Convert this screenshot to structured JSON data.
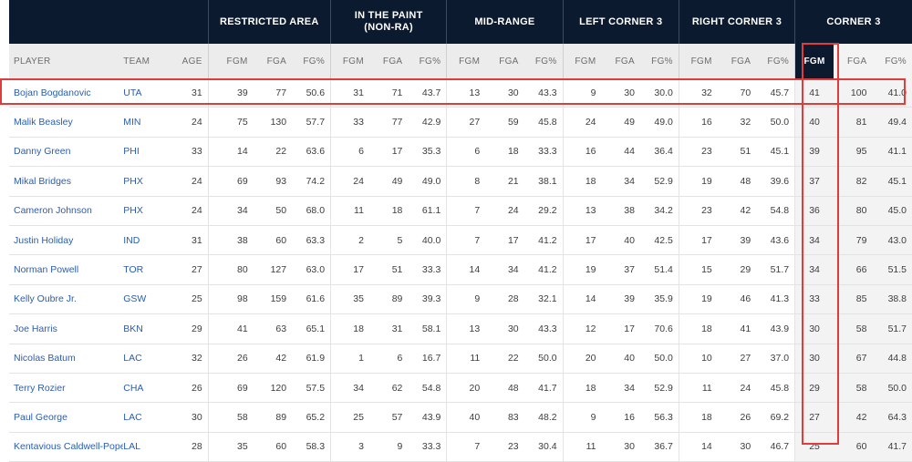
{
  "groups": {
    "restricted_area": "RESTRICTED AREA",
    "in_the_paint_line1": "IN THE PAINT",
    "in_the_paint_line2": "(NON-RA)",
    "mid_range": "MID-RANGE",
    "left_corner_3": "LEFT CORNER 3",
    "right_corner_3": "RIGHT CORNER 3",
    "corner_3": "CORNER 3"
  },
  "columns": {
    "player": "PLAYER",
    "team": "TEAM",
    "age": "AGE",
    "fgm": "FGM",
    "fga": "FGA",
    "fgp": "FG%"
  },
  "highlight": {
    "row_color": "#e03c3c",
    "col_color": "#e03c3c",
    "active_sort_column": "corner_3.FGM"
  },
  "colors": {
    "header_bg": "#0b1a2e",
    "player_link": "#2a5db0"
  },
  "rows": [
    {
      "player": "Bojan Bogdanovic",
      "team": "UTA",
      "age": "31",
      "ra": [
        "39",
        "77",
        "50.6"
      ],
      "paint": [
        "31",
        "71",
        "43.7"
      ],
      "mid": [
        "13",
        "30",
        "43.3"
      ],
      "lc3": [
        "9",
        "30",
        "30.0"
      ],
      "rc3": [
        "32",
        "70",
        "45.7"
      ],
      "c3": [
        "41",
        "100",
        "41.0"
      ]
    },
    {
      "player": "Malik Beasley",
      "team": "MIN",
      "age": "24",
      "ra": [
        "75",
        "130",
        "57.7"
      ],
      "paint": [
        "33",
        "77",
        "42.9"
      ],
      "mid": [
        "27",
        "59",
        "45.8"
      ],
      "lc3": [
        "24",
        "49",
        "49.0"
      ],
      "rc3": [
        "16",
        "32",
        "50.0"
      ],
      "c3": [
        "40",
        "81",
        "49.4"
      ]
    },
    {
      "player": "Danny Green",
      "team": "PHI",
      "age": "33",
      "ra": [
        "14",
        "22",
        "63.6"
      ],
      "paint": [
        "6",
        "17",
        "35.3"
      ],
      "mid": [
        "6",
        "18",
        "33.3"
      ],
      "lc3": [
        "16",
        "44",
        "36.4"
      ],
      "rc3": [
        "23",
        "51",
        "45.1"
      ],
      "c3": [
        "39",
        "95",
        "41.1"
      ]
    },
    {
      "player": "Mikal Bridges",
      "team": "PHX",
      "age": "24",
      "ra": [
        "69",
        "93",
        "74.2"
      ],
      "paint": [
        "24",
        "49",
        "49.0"
      ],
      "mid": [
        "8",
        "21",
        "38.1"
      ],
      "lc3": [
        "18",
        "34",
        "52.9"
      ],
      "rc3": [
        "19",
        "48",
        "39.6"
      ],
      "c3": [
        "37",
        "82",
        "45.1"
      ]
    },
    {
      "player": "Cameron Johnson",
      "team": "PHX",
      "age": "24",
      "ra": [
        "34",
        "50",
        "68.0"
      ],
      "paint": [
        "11",
        "18",
        "61.1"
      ],
      "mid": [
        "7",
        "24",
        "29.2"
      ],
      "lc3": [
        "13",
        "38",
        "34.2"
      ],
      "rc3": [
        "23",
        "42",
        "54.8"
      ],
      "c3": [
        "36",
        "80",
        "45.0"
      ]
    },
    {
      "player": "Justin Holiday",
      "team": "IND",
      "age": "31",
      "ra": [
        "38",
        "60",
        "63.3"
      ],
      "paint": [
        "2",
        "5",
        "40.0"
      ],
      "mid": [
        "7",
        "17",
        "41.2"
      ],
      "lc3": [
        "17",
        "40",
        "42.5"
      ],
      "rc3": [
        "17",
        "39",
        "43.6"
      ],
      "c3": [
        "34",
        "79",
        "43.0"
      ]
    },
    {
      "player": "Norman Powell",
      "team": "TOR",
      "age": "27",
      "ra": [
        "80",
        "127",
        "63.0"
      ],
      "paint": [
        "17",
        "51",
        "33.3"
      ],
      "mid": [
        "14",
        "34",
        "41.2"
      ],
      "lc3": [
        "19",
        "37",
        "51.4"
      ],
      "rc3": [
        "15",
        "29",
        "51.7"
      ],
      "c3": [
        "34",
        "66",
        "51.5"
      ]
    },
    {
      "player": "Kelly Oubre Jr.",
      "team": "GSW",
      "age": "25",
      "ra": [
        "98",
        "159",
        "61.6"
      ],
      "paint": [
        "35",
        "89",
        "39.3"
      ],
      "mid": [
        "9",
        "28",
        "32.1"
      ],
      "lc3": [
        "14",
        "39",
        "35.9"
      ],
      "rc3": [
        "19",
        "46",
        "41.3"
      ],
      "c3": [
        "33",
        "85",
        "38.8"
      ]
    },
    {
      "player": "Joe Harris",
      "team": "BKN",
      "age": "29",
      "ra": [
        "41",
        "63",
        "65.1"
      ],
      "paint": [
        "18",
        "31",
        "58.1"
      ],
      "mid": [
        "13",
        "30",
        "43.3"
      ],
      "lc3": [
        "12",
        "17",
        "70.6"
      ],
      "rc3": [
        "18",
        "41",
        "43.9"
      ],
      "c3": [
        "30",
        "58",
        "51.7"
      ]
    },
    {
      "player": "Nicolas Batum",
      "team": "LAC",
      "age": "32",
      "ra": [
        "26",
        "42",
        "61.9"
      ],
      "paint": [
        "1",
        "6",
        "16.7"
      ],
      "mid": [
        "11",
        "22",
        "50.0"
      ],
      "lc3": [
        "20",
        "40",
        "50.0"
      ],
      "rc3": [
        "10",
        "27",
        "37.0"
      ],
      "c3": [
        "30",
        "67",
        "44.8"
      ]
    },
    {
      "player": "Terry Rozier",
      "team": "CHA",
      "age": "26",
      "ra": [
        "69",
        "120",
        "57.5"
      ],
      "paint": [
        "34",
        "62",
        "54.8"
      ],
      "mid": [
        "20",
        "48",
        "41.7"
      ],
      "lc3": [
        "18",
        "34",
        "52.9"
      ],
      "rc3": [
        "11",
        "24",
        "45.8"
      ],
      "c3": [
        "29",
        "58",
        "50.0"
      ]
    },
    {
      "player": "Paul George",
      "team": "LAC",
      "age": "30",
      "ra": [
        "58",
        "89",
        "65.2"
      ],
      "paint": [
        "25",
        "57",
        "43.9"
      ],
      "mid": [
        "40",
        "83",
        "48.2"
      ],
      "lc3": [
        "9",
        "16",
        "56.3"
      ],
      "rc3": [
        "18",
        "26",
        "69.2"
      ],
      "c3": [
        "27",
        "42",
        "64.3"
      ]
    },
    {
      "player": "Kentavious Caldwell-Pope",
      "team": "LAL",
      "age": "28",
      "ra": [
        "35",
        "60",
        "58.3"
      ],
      "paint": [
        "3",
        "9",
        "33.3"
      ],
      "mid": [
        "7",
        "23",
        "30.4"
      ],
      "lc3": [
        "11",
        "30",
        "36.7"
      ],
      "rc3": [
        "14",
        "30",
        "46.7"
      ],
      "c3": [
        "25",
        "60",
        "41.7"
      ]
    }
  ]
}
